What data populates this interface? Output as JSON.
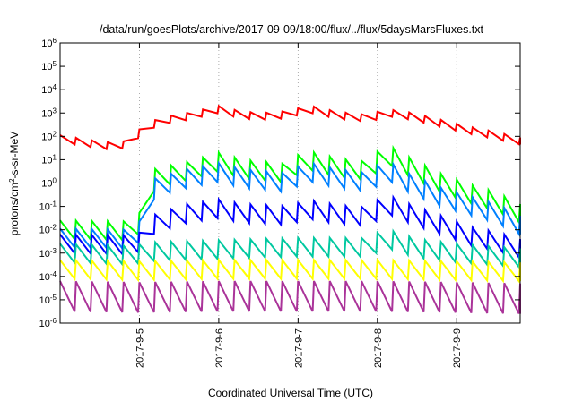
{
  "chart_data": {
    "type": "line",
    "title": "/data/run/goesPlots/archive/2017-09-09/18:00/flux/../flux/5daysMarsFluxes.txt",
    "xlabel": "Coordinated Universal Time (UTC)",
    "ylabel_parts": [
      "protons/cm",
      "2",
      "-s-sr-MeV"
    ],
    "yscale": "log",
    "xlim": [
      4.0,
      9.8
    ],
    "ylim_exponent": [
      -6,
      6
    ],
    "grid": "dotted",
    "x_ticks": [
      {
        "value": 5,
        "label": "2017-9-5"
      },
      {
        "value": 6,
        "label": "2017-9-6"
      },
      {
        "value": 7,
        "label": "2017-9-7"
      },
      {
        "value": 8,
        "label": "2017-9-8"
      },
      {
        "value": 9,
        "label": "2017-9-9"
      }
    ],
    "y_ticks": [
      {
        "exponent": 6,
        "base": "10",
        "sup": "6"
      },
      {
        "exponent": 5,
        "base": "10",
        "sup": "5"
      },
      {
        "exponent": 4,
        "base": "10",
        "sup": "4"
      },
      {
        "exponent": 3,
        "base": "10",
        "sup": "3"
      },
      {
        "exponent": 2,
        "base": "10",
        "sup": "2"
      },
      {
        "exponent": 1,
        "base": "10",
        "sup": "1"
      },
      {
        "exponent": 0,
        "base": "10",
        "sup": "0"
      },
      {
        "exponent": -1,
        "base": "10",
        "sup": "-1"
      },
      {
        "exponent": -2,
        "base": "10",
        "sup": "-2"
      },
      {
        "exponent": -3,
        "base": "10",
        "sup": "-3"
      },
      {
        "exponent": -4,
        "base": "10",
        "sup": "-4"
      },
      {
        "exponent": -5,
        "base": "10",
        "sup": "-5"
      },
      {
        "exponent": -6,
        "base": "10",
        "sup": "-6"
      }
    ],
    "series": [
      {
        "color": "#ff0000",
        "sawtooth": {
          "period": 0.2,
          "base_amp": 0.3
        },
        "anchors": [
          [
            4.0,
            2.05
          ],
          [
            4.55,
            1.75
          ],
          [
            4.9,
            1.8
          ],
          [
            5.0,
            2.3
          ],
          [
            5.25,
            2.8
          ],
          [
            5.6,
            3.0
          ],
          [
            6.0,
            3.3
          ],
          [
            6.3,
            3.05
          ],
          [
            6.7,
            3.0
          ],
          [
            7.0,
            3.2
          ],
          [
            7.1,
            3.35
          ],
          [
            7.5,
            3.05
          ],
          [
            7.95,
            2.9
          ],
          [
            8.05,
            3.2
          ],
          [
            8.45,
            3.0
          ],
          [
            8.75,
            2.75
          ],
          [
            9.1,
            2.45
          ],
          [
            9.4,
            2.25
          ],
          [
            9.8,
            1.95
          ]
        ]
      },
      {
        "color": "#00ff00",
        "sawtooth": {
          "period": 0.2,
          "base_amp": 0.8
        },
        "anchors": [
          [
            4.0,
            -1.6
          ],
          [
            4.95,
            -1.65
          ],
          [
            5.05,
            -0.9
          ],
          [
            5.1,
            -0.3
          ],
          [
            5.2,
            0.6
          ],
          [
            5.6,
            0.9
          ],
          [
            6.0,
            1.3
          ],
          [
            6.3,
            1.0
          ],
          [
            6.9,
            0.8
          ],
          [
            7.0,
            1.2
          ],
          [
            7.1,
            1.4
          ],
          [
            7.5,
            1.05
          ],
          [
            7.95,
            0.9
          ],
          [
            8.05,
            1.8
          ],
          [
            8.4,
            1.1
          ],
          [
            8.8,
            0.4
          ],
          [
            9.2,
            -0.1
          ],
          [
            9.5,
            -0.4
          ],
          [
            9.8,
            -0.9
          ]
        ]
      },
      {
        "color": "#0080ff",
        "sawtooth": {
          "period": 0.2,
          "base_amp": 0.8
        },
        "anchors": [
          [
            4.0,
            -1.95
          ],
          [
            4.95,
            -2.0
          ],
          [
            5.05,
            -1.3
          ],
          [
            5.1,
            -0.5
          ],
          [
            5.2,
            0.2
          ],
          [
            5.6,
            0.6
          ],
          [
            6.0,
            0.85
          ],
          [
            6.3,
            0.6
          ],
          [
            6.9,
            0.4
          ],
          [
            7.0,
            0.7
          ],
          [
            7.1,
            0.9
          ],
          [
            7.5,
            0.6
          ],
          [
            7.95,
            0.4
          ],
          [
            8.05,
            1.1
          ],
          [
            8.4,
            0.4
          ],
          [
            8.8,
            -0.2
          ],
          [
            9.2,
            -0.6
          ],
          [
            9.5,
            -0.9
          ],
          [
            9.8,
            -1.4
          ]
        ]
      },
      {
        "color": "#0000ff",
        "sawtooth": {
          "period": 0.2,
          "base_amp": 0.8
        },
        "anchors": [
          [
            4.0,
            -2.2
          ],
          [
            4.95,
            -2.25
          ],
          [
            5.05,
            -2.0
          ],
          [
            5.1,
            -1.55
          ],
          [
            5.2,
            -1.35
          ],
          [
            5.6,
            -0.9
          ],
          [
            6.0,
            -0.7
          ],
          [
            6.3,
            -0.9
          ],
          [
            6.9,
            -1.0
          ],
          [
            7.0,
            -0.85
          ],
          [
            7.1,
            -0.7
          ],
          [
            7.5,
            -0.95
          ],
          [
            7.95,
            -1.05
          ],
          [
            8.05,
            -0.4
          ],
          [
            8.4,
            -0.9
          ],
          [
            8.8,
            -1.4
          ],
          [
            9.2,
            -1.9
          ],
          [
            9.5,
            -2.1
          ],
          [
            9.8,
            -2.4
          ]
        ]
      },
      {
        "color": "#00c8a0",
        "sawtooth": {
          "period": 0.2,
          "base_amp": 0.8
        },
        "anchors": [
          [
            4.0,
            -2.6
          ],
          [
            4.95,
            -2.7
          ],
          [
            5.05,
            -2.55
          ],
          [
            5.5,
            -2.5
          ],
          [
            6.0,
            -2.45
          ],
          [
            6.5,
            -2.4
          ],
          [
            7.0,
            -2.35
          ],
          [
            7.95,
            -2.35
          ],
          [
            8.05,
            -1.9
          ],
          [
            8.5,
            -2.4
          ],
          [
            9.0,
            -2.6
          ],
          [
            9.8,
            -2.8
          ]
        ]
      },
      {
        "color": "#ffff00",
        "sawtooth": {
          "period": 0.2,
          "base_amp": 0.8
        },
        "anchors": [
          [
            4.0,
            -3.3
          ],
          [
            5.0,
            -3.35
          ],
          [
            6.0,
            -3.3
          ],
          [
            7.0,
            -3.3
          ],
          [
            8.0,
            -3.3
          ],
          [
            9.0,
            -3.35
          ],
          [
            9.8,
            -3.4
          ]
        ]
      },
      {
        "color": "#aa3399",
        "sawtooth": {
          "period": 0.2,
          "base_amp": 1.3
        },
        "anchors": [
          [
            4.0,
            -4.2
          ],
          [
            5.0,
            -4.25
          ],
          [
            6.0,
            -4.2
          ],
          [
            7.0,
            -4.2
          ],
          [
            8.0,
            -4.2
          ],
          [
            9.0,
            -4.25
          ],
          [
            9.8,
            -4.3
          ]
        ]
      }
    ]
  }
}
